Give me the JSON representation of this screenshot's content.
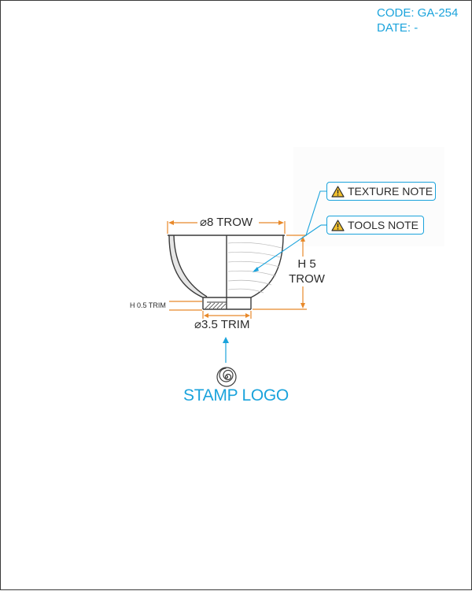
{
  "header": {
    "code": "CODE: GA-254",
    "date": "DATE: -"
  },
  "notes": {
    "texture": "TEXTURE NOTE",
    "tools": "TOOLS NOTE"
  },
  "dimensions": {
    "top_diameter": "⌀8 TROW",
    "height_line1": "H 5",
    "height_line2": "TROW",
    "foot_diameter": "⌀3.5 TRIM",
    "foot_height": "H 0.5 TRIM"
  },
  "stamp": {
    "label": "STAMP LOGO"
  },
  "icons": {
    "warning": "warning-triangle-icon",
    "stamp": "spiral-stamp-icon"
  },
  "colors": {
    "accent": "#1aa3dc",
    "dimension": "#e8892a",
    "outline": "#3a3a3a"
  }
}
